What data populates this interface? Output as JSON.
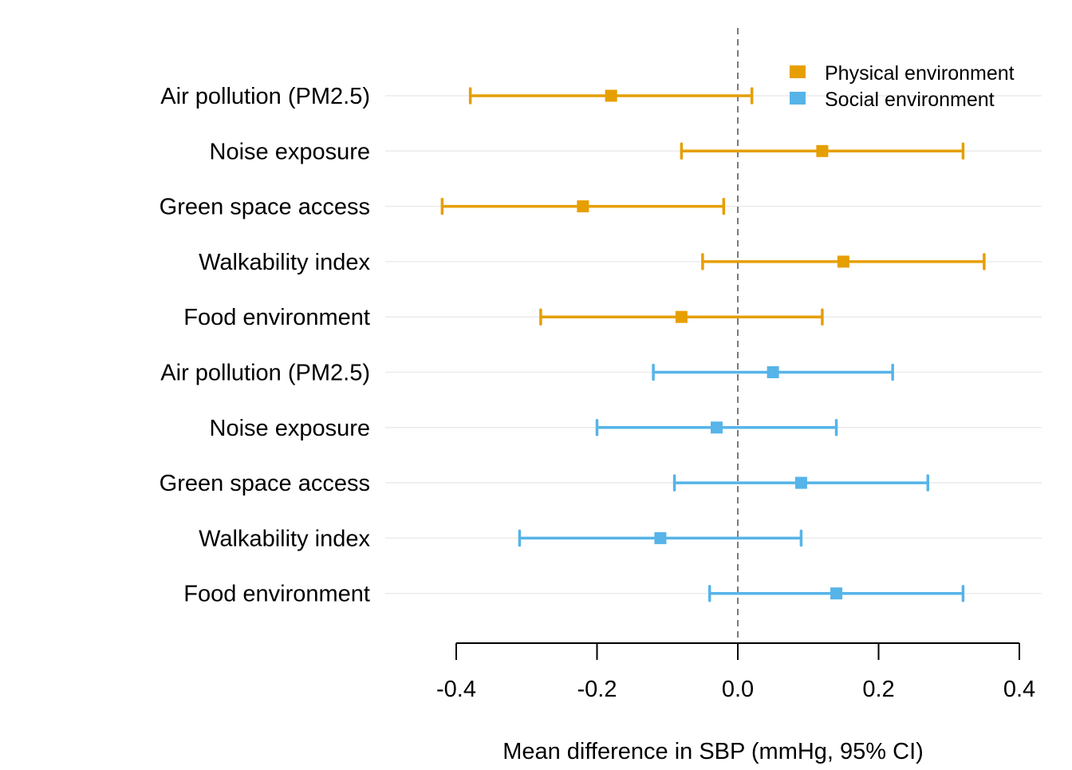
{
  "chart_data": {
    "type": "forest",
    "title": "",
    "xlabel": "Mean difference in SBP (mmHg, 95% CI)",
    "ylabel": "",
    "xlim": [
      -0.4,
      0.4
    ],
    "x_ticks": [
      -0.4,
      -0.2,
      0.0,
      0.2,
      0.4
    ],
    "x_tick_labels": [
      "-0.4",
      "-0.2",
      "0.0",
      "0.2",
      "0.4"
    ],
    "reference_line": 0.0,
    "grid": "horizontal",
    "legend_position": "top-right",
    "series": [
      {
        "name": "Physical environment",
        "color": "#E69F00",
        "rows": [
          {
            "label": "Air pollution (PM2.5)",
            "estimate": -0.18,
            "lower": -0.38,
            "upper": 0.02
          },
          {
            "label": "Noise exposure",
            "estimate": 0.12,
            "lower": -0.08,
            "upper": 0.32
          },
          {
            "label": "Green space access",
            "estimate": -0.22,
            "lower": -0.42,
            "upper": -0.02
          },
          {
            "label": "Walkability index",
            "estimate": 0.15,
            "lower": -0.05,
            "upper": 0.35
          },
          {
            "label": "Food environment",
            "estimate": -0.08,
            "lower": -0.28,
            "upper": 0.12
          }
        ]
      },
      {
        "name": "Social environment",
        "color": "#56B4E9",
        "rows": [
          {
            "label": "Air pollution (PM2.5)",
            "estimate": 0.05,
            "lower": -0.12,
            "upper": 0.22
          },
          {
            "label": "Noise exposure",
            "estimate": -0.03,
            "lower": -0.2,
            "upper": 0.14
          },
          {
            "label": "Green space access",
            "estimate": 0.09,
            "lower": -0.09,
            "upper": 0.27
          },
          {
            "label": "Walkability index",
            "estimate": -0.11,
            "lower": -0.31,
            "upper": 0.09
          },
          {
            "label": "Food environment",
            "estimate": 0.14,
            "lower": -0.04,
            "upper": 0.32
          }
        ]
      }
    ]
  }
}
